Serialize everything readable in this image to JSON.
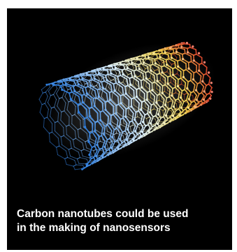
{
  "caption": {
    "line1": "Carbon nanotubes could be used",
    "line2": "in the making of nanosensors"
  },
  "illustration": {
    "subject": "carbon-nanotube-lattice",
    "colors": {
      "background": "#000000",
      "cool": "#2f7fe0",
      "light": "#dff3ff",
      "warm": "#f2d24a",
      "hot": "#e2452c"
    }
  }
}
